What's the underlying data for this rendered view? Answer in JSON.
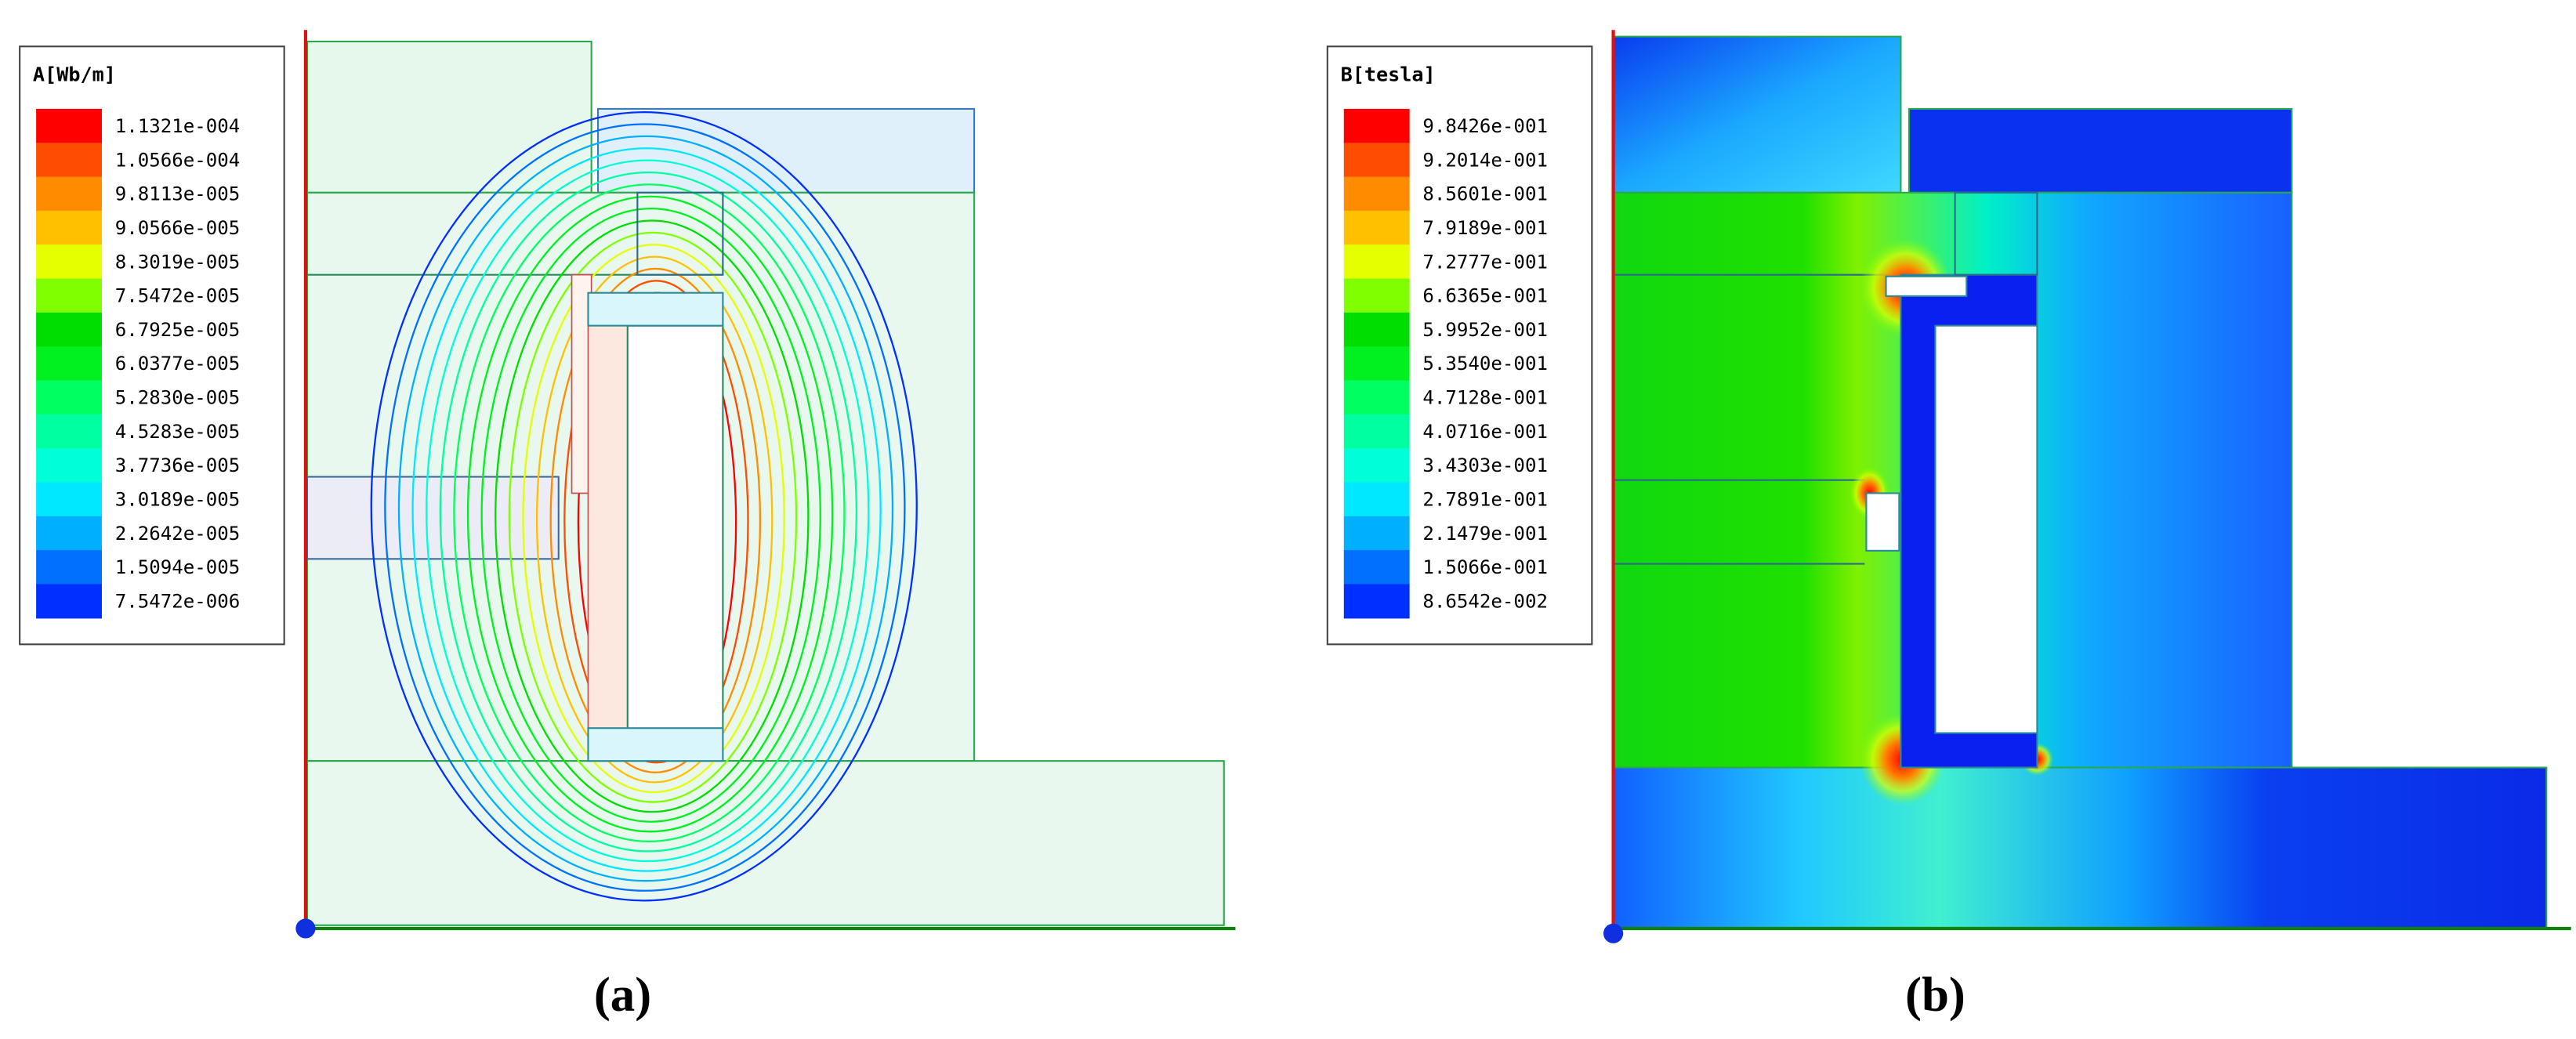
{
  "panels": [
    {
      "legend": {
        "title": "A[Wb/m]",
        "labels": [
          "1.1321e-004",
          "1.0566e-004",
          "9.8113e-005",
          "9.0566e-005",
          "8.3019e-005",
          "7.5472e-005",
          "6.7925e-005",
          "6.0377e-005",
          "5.2830e-005",
          "4.5283e-005",
          "3.7736e-005",
          "3.0189e-005",
          "2.2642e-005",
          "1.5094e-005",
          "7.5472e-006"
        ]
      },
      "caption": "(a)"
    },
    {
      "legend": {
        "title": "B[tesla]",
        "labels": [
          "9.8426e-001",
          "9.2014e-001",
          "8.5601e-001",
          "7.9189e-001",
          "7.2777e-001",
          "6.6365e-001",
          "5.9952e-001",
          "5.3540e-001",
          "4.7128e-001",
          "4.0716e-001",
          "3.4303e-001",
          "2.7891e-001",
          "2.1479e-001",
          "1.5066e-001",
          "8.6542e-002"
        ]
      },
      "caption": "(b)"
    }
  ]
}
